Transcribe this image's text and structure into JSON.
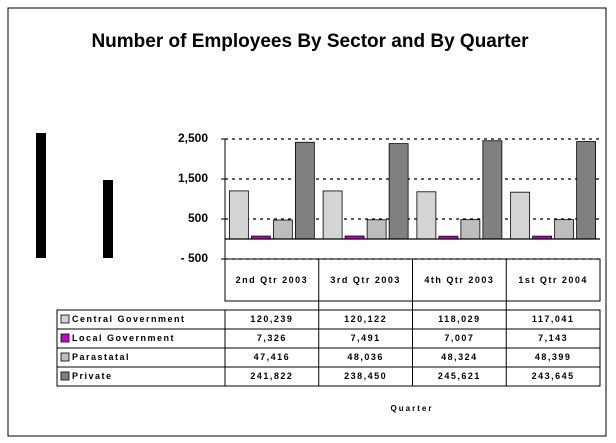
{
  "chart_data": {
    "type": "bar",
    "title": "Number of Employees By Sector and By Quarter",
    "x_label": "Quarter",
    "categories": [
      "2nd Qtr 2003",
      "3rd Qtr 2003",
      "4th Qtr 2003",
      "1st Qtr 2004"
    ],
    "series": [
      {
        "name": "Central Government",
        "color": "#d4d4d4",
        "values": [
          1202.39,
          1201.22,
          1180.29,
          1170.41
        ],
        "value_labels": [
          "120,239",
          "120,122",
          "118,029",
          "117,041"
        ]
      },
      {
        "name": "Local Government",
        "color": "#cc00cc",
        "values": [
          73.26,
          74.91,
          70.07,
          71.43
        ],
        "value_labels": [
          "7,326",
          "7,491",
          "7,007",
          "7,143"
        ]
      },
      {
        "name": "Parastatal",
        "color": "#bdbdbd",
        "values": [
          474.16,
          480.36,
          483.24,
          483.99
        ],
        "value_labels": [
          "47,416",
          "48,036",
          "48,324",
          "48,399"
        ]
      },
      {
        "name": "Private",
        "color": "#808080",
        "values": [
          2418.22,
          2384.5,
          2456.21,
          2436.45
        ],
        "value_labels": [
          "241,822",
          "238,450",
          "245,621",
          "243,645"
        ]
      }
    ],
    "ylim": [
      -500,
      2500
    ],
    "yticks": [
      {
        "value": 2500,
        "label": "2,500"
      },
      {
        "value": 1500,
        "label": "1,500"
      },
      500,
      {
        "value": -500,
        "label": "- 500"
      }
    ],
    "grid": true
  }
}
